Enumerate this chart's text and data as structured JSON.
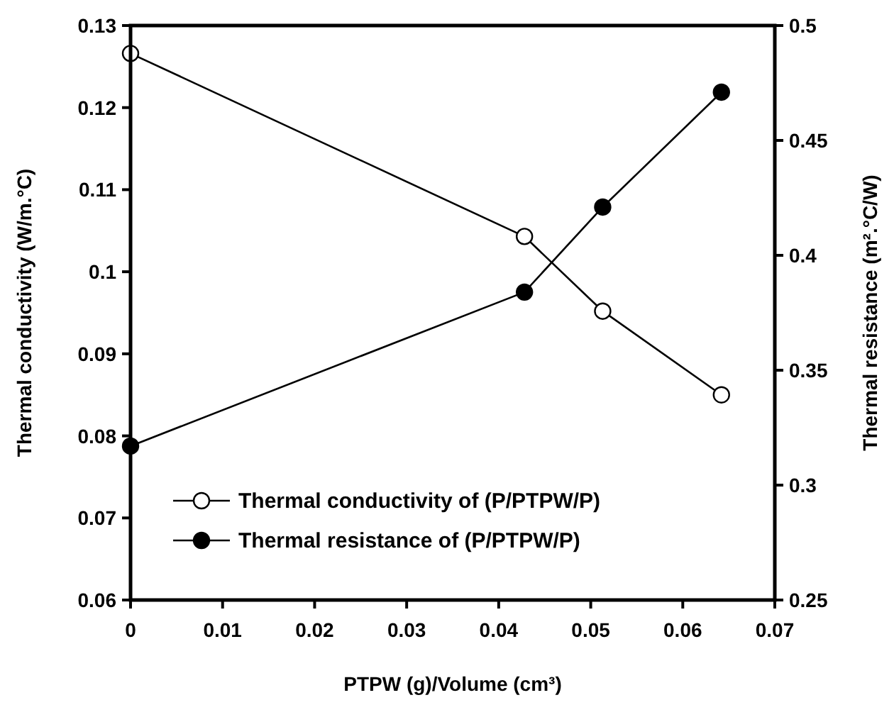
{
  "chart_data": {
    "type": "line",
    "xlabel": "PTPW (g)/Volume (cm³)",
    "ylabel": "Thermal conductivity (W/m.°C)",
    "y2label": "Thermal resistance (m².°C/W)",
    "x": [
      0,
      0.0428,
      0.0513,
      0.0642
    ],
    "series": [
      {
        "name": "Thermal conductivity of (P/PTPW/P)",
        "color": "#000000",
        "values": [
          0.1266,
          0.1043,
          0.0952,
          0.085
        ]
      },
      {
        "name": "Thermal resistance of (P/PTPW/P)",
        "color": "#000000",
        "axis": "y2",
        "values": [
          0.317,
          0.384,
          0.421,
          0.471
        ]
      }
    ],
    "xlim": [
      0,
      0.07
    ],
    "xticks": [
      0,
      0.01,
      0.02,
      0.03,
      0.04,
      0.05,
      0.06,
      0.07
    ],
    "ylim": [
      0.06,
      0.13
    ],
    "yticks": [
      0.06,
      0.07,
      0.08,
      0.09,
      0.1,
      0.11,
      0.12,
      0.13
    ],
    "y2lim": [
      0.25,
      0.5
    ],
    "y2ticks": [
      0.25,
      0.3,
      0.35,
      0.4,
      0.45,
      0.5
    ],
    "grid": false,
    "legend": "bottom",
    "marker": "circle",
    "line_style": "solid"
  }
}
